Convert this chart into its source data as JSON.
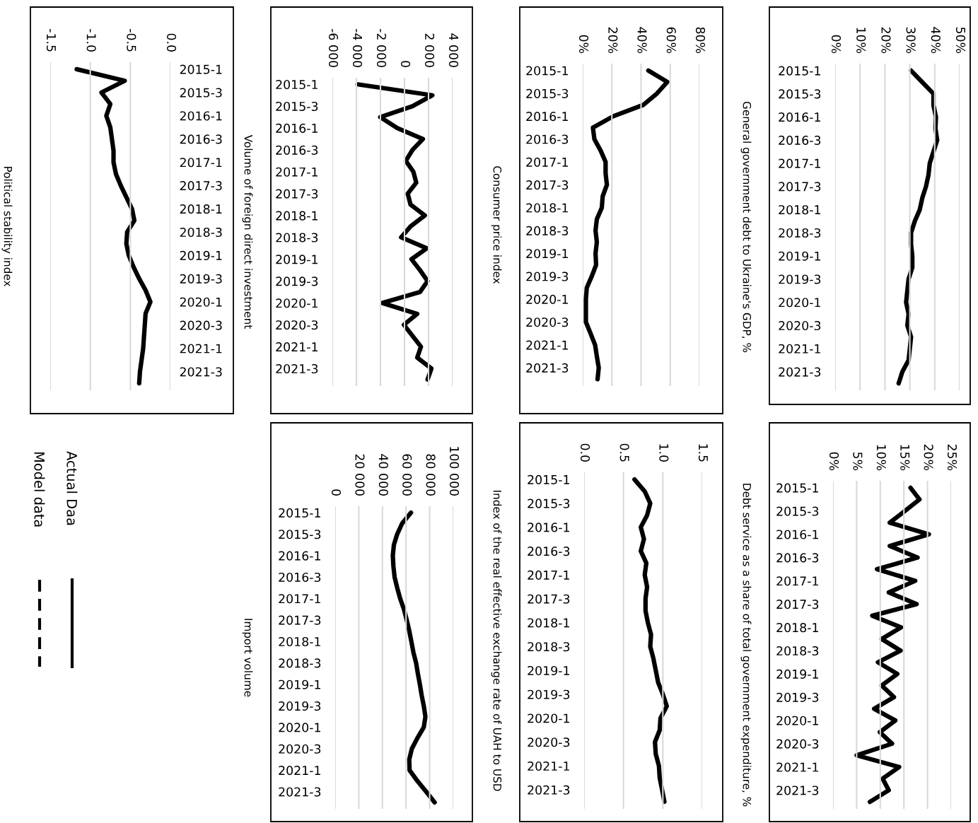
{
  "chart_data": [
    {
      "type": "line",
      "title": "General government debt to Ukraine's GDP, %",
      "categories": [
        "2015-1",
        null,
        "2015-3",
        null,
        "2016-1",
        null,
        "2016-3",
        null,
        "2017-1",
        null,
        "2017-3",
        null,
        "2018-1",
        null,
        "2018-3",
        null,
        "2019-1",
        null,
        "2019-3",
        null,
        "2020-1",
        null,
        "2020-3",
        null,
        "2021-1",
        null,
        "2021-3",
        null
      ],
      "series": [
        {
          "color": "#000000",
          "values": [
            30.5,
            35,
            39.5,
            39.5,
            40.5,
            40.3,
            41,
            39.5,
            38,
            37.5,
            36.5,
            35,
            34,
            32,
            30.5,
            30.5,
            31,
            31,
            29.5,
            29,
            28.5,
            29.5,
            29,
            30.5,
            30,
            29.5,
            27,
            25.5
          ]
        }
      ],
      "orientation": "horizontal",
      "xlim": [
        0,
        50
      ],
      "xticks": [
        {
          "value": 0,
          "label": "0%"
        },
        {
          "value": 10,
          "label": "10%"
        },
        {
          "value": 20,
          "label": "20%"
        },
        {
          "value": 30,
          "label": "30%"
        },
        {
          "value": 40,
          "label": "40%"
        },
        {
          "value": 50,
          "label": "50%"
        }
      ],
      "grid": "x"
    },
    {
      "type": "line",
      "title": "Debt service as a share of total government expenditure, %",
      "categories": [
        "2015-1",
        null,
        "2015-3",
        null,
        "2016-1",
        null,
        "2016-3",
        null,
        "2017-1",
        null,
        "2017-3",
        null,
        "2018-1",
        null,
        "2018-3",
        null,
        "2019-1",
        null,
        "2019-3",
        null,
        "2020-1",
        null,
        "2020-3",
        null,
        "2021-1",
        null,
        "2021-3",
        null
      ],
      "series": [
        {
          "color": "#000000",
          "values": [
            16.4,
            18.3,
            15.2,
            12.0,
            20.3,
            12.0,
            17.9,
            9.3,
            17.4,
            11.8,
            17.7,
            8.3,
            14.4,
            10.3,
            14.3,
            9.5,
            13.6,
            10.3,
            12.9,
            8.7,
            13.2,
            9.9,
            12.5,
            5.0,
            14.0,
            10.5,
            11.8,
            7.8
          ]
        }
      ],
      "orientation": "horizontal",
      "xlim": [
        0,
        25
      ],
      "xticks": [
        {
          "value": 0,
          "label": "0%"
        },
        {
          "value": 5,
          "label": "5%"
        },
        {
          "value": 10,
          "label": "10%"
        },
        {
          "value": 15,
          "label": "15%"
        },
        {
          "value": 20,
          "label": "20%"
        },
        {
          "value": 25,
          "label": "25%"
        }
      ],
      "grid": "x"
    },
    {
      "type": "line",
      "title": "Consumer price index",
      "categories": [
        "2015-1",
        null,
        "2015-3",
        null,
        "2016-1",
        null,
        "2016-3",
        null,
        "2017-1",
        null,
        "2017-3",
        null,
        "2018-1",
        null,
        "2018-3",
        null,
        "2019-1",
        null,
        "2019-3",
        null,
        "2020-1",
        null,
        "2020-3",
        null,
        "2021-1",
        null,
        "2021-3",
        null
      ],
      "series": [
        {
          "color": "#000000",
          "values": [
            45,
            58,
            51,
            41.7,
            21,
            7,
            8,
            12.3,
            15.7,
            15.7,
            16.6,
            13.7,
            13.1,
            9.7,
            8.8,
            9.7,
            8.8,
            9.2,
            6.2,
            2.8,
            2.2,
            2.2,
            2.2,
            5.4,
            8.5,
            9.7,
            11,
            10.2
          ]
        }
      ],
      "orientation": "horizontal",
      "xlim": [
        0,
        80
      ],
      "xticks": [
        {
          "value": 0,
          "label": "0%"
        },
        {
          "value": 20,
          "label": "20%"
        },
        {
          "value": 40,
          "label": "40%"
        },
        {
          "value": 60,
          "label": "60%"
        },
        {
          "value": 80,
          "label": "80%"
        }
      ],
      "grid": "x"
    },
    {
      "type": "line",
      "title": "Index of the real effective exchange rate of UAH to USD",
      "categories": [
        "2015-1",
        null,
        "2015-3",
        null,
        "2016-1",
        null,
        "2016-3",
        null,
        "2017-1",
        null,
        "2017-3",
        null,
        "2018-1",
        null,
        "2018-3",
        null,
        "2019-1",
        null,
        "2019-3",
        null,
        "2020-1",
        null,
        "2020-3",
        null,
        "2021-1",
        null,
        "2021-3",
        null
      ],
      "series": [
        {
          "color": "#000000",
          "values": [
            0.64,
            0.77,
            0.84,
            0.8,
            0.72,
            0.76,
            0.72,
            0.79,
            0.77,
            0.8,
            0.78,
            0.78,
            0.81,
            0.85,
            0.84,
            0.88,
            0.91,
            0.94,
            1.0,
            1.05,
            0.97,
            0.96,
            0.9,
            0.91,
            0.95,
            0.96,
            0.99,
            1.02
          ]
        }
      ],
      "orientation": "horizontal",
      "xlim": [
        0,
        1.5
      ],
      "xticks": [
        {
          "value": 0,
          "label": "0.0"
        },
        {
          "value": 0.5,
          "label": "0.5"
        },
        {
          "value": 1,
          "label": "1.0"
        },
        {
          "value": 1.5,
          "label": "1.5"
        }
      ],
      "grid": "x"
    },
    {
      "type": "line",
      "title": "Volume of foreign direct investment",
      "categories": [
        "2015-1",
        null,
        "2015-3",
        null,
        "2016-1",
        null,
        "2016-3",
        null,
        "2017-1",
        null,
        "2017-3",
        null,
        "2018-1",
        null,
        "2018-3",
        null,
        "2019-1",
        null,
        "2019-3",
        null,
        "2020-1",
        null,
        "2020-3",
        null,
        "2021-1",
        null,
        "2021-3",
        null
      ],
      "series": [
        {
          "color": "#000000",
          "values": [
            -3910,
            2320,
            660,
            -2020,
            -600,
            1530,
            660,
            110,
            740,
            980,
            270,
            500,
            1690,
            500,
            -280,
            1850,
            580,
            1290,
            1920,
            1290,
            -1860,
            1060,
            -50,
            660,
            1370,
            1060,
            2240,
            1920
          ]
        }
      ],
      "orientation": "horizontal",
      "xlim": [
        -6000,
        4000
      ],
      "xticks": [
        {
          "value": -6000,
          "label": "-6 000"
        },
        {
          "value": -4000,
          "label": "-4 000"
        },
        {
          "value": -2000,
          "label": "-2 000"
        },
        0,
        {
          "value": 2000,
          "label": "2 000"
        },
        {
          "value": 4000,
          "label": "4 000"
        }
      ],
      "grid": "x"
    },
    {
      "type": "line",
      "title": "Import volume",
      "categories": [
        "2015-1",
        null,
        "2015-3",
        null,
        "2016-1",
        null,
        "2016-3",
        null,
        "2017-1",
        null,
        "2017-3",
        null,
        "2018-1",
        null,
        "2018-3",
        null,
        "2019-1",
        null,
        "2019-3",
        null,
        "2020-1",
        null,
        "2020-3",
        null,
        "2021-1",
        null,
        "2021-3",
        null
      ],
      "series": [
        {
          "color": "#000000",
          "values": [
            64200,
            56700,
            52500,
            49700,
            48800,
            49300,
            50300,
            52500,
            55000,
            58200,
            60600,
            62700,
            64500,
            66200,
            68500,
            70000,
            71700,
            73200,
            75000,
            76400,
            75000,
            69600,
            64900,
            62700,
            63000,
            69600,
            77100,
            84200
          ]
        }
      ],
      "orientation": "horizontal",
      "xlim": [
        0,
        100000
      ],
      "xticks": [
        0,
        {
          "value": 20000,
          "label": "20 000"
        },
        {
          "value": 40000,
          "label": "40 000"
        },
        {
          "value": 60000,
          "label": "60 000"
        },
        {
          "value": 80000,
          "label": "80 000"
        },
        {
          "value": 100000,
          "label": "100 000"
        }
      ],
      "grid": "x"
    },
    {
      "type": "line",
      "title": "Political stability index",
      "categories": [
        "2015-1",
        null,
        "2015-3",
        null,
        "2016-1",
        null,
        "2016-3",
        null,
        "2017-1",
        null,
        "2017-3",
        null,
        "2018-1",
        null,
        "2018-3",
        null,
        "2019-1",
        null,
        "2019-3",
        null,
        "2020-1",
        null,
        "2020-3",
        null,
        "2021-1",
        null,
        "2021-3",
        null
      ],
      "series": [
        {
          "name": "Actual Daa",
          "color": "#000000",
          "line_style": "solid",
          "values": [
            -1.17,
            -0.57,
            -0.86,
            -0.75,
            -0.8,
            -0.75,
            -0.73,
            -0.71,
            -0.71,
            -0.68,
            -0.62,
            -0.55,
            -0.48,
            -0.45,
            -0.54,
            -0.55,
            -0.52,
            -0.46,
            -0.39,
            -0.31,
            -0.25,
            -0.31,
            -0.32,
            -0.33,
            -0.34,
            -0.36,
            -0.38,
            -0.39
          ]
        },
        {
          "name": "Model data",
          "color": "#000000",
          "line_style": "dashed",
          "values": [
            null,
            null,
            null,
            null,
            null,
            null,
            null,
            null,
            null,
            null,
            null,
            null,
            null,
            null,
            null,
            null,
            null,
            null,
            null,
            null,
            null,
            null,
            null,
            null,
            null,
            null,
            null,
            null
          ]
        }
      ],
      "orientation": "horizontal",
      "xlim": [
        -1.5,
        0
      ],
      "xticks": [
        {
          "value": -1.5,
          "label": "-1.5"
        },
        {
          "value": -1,
          "label": "-1.0"
        },
        {
          "value": -0.5,
          "label": "-0.5"
        },
        {
          "value": 0,
          "label": "0.0"
        }
      ],
      "grid": "x",
      "legend": "bottom"
    }
  ]
}
